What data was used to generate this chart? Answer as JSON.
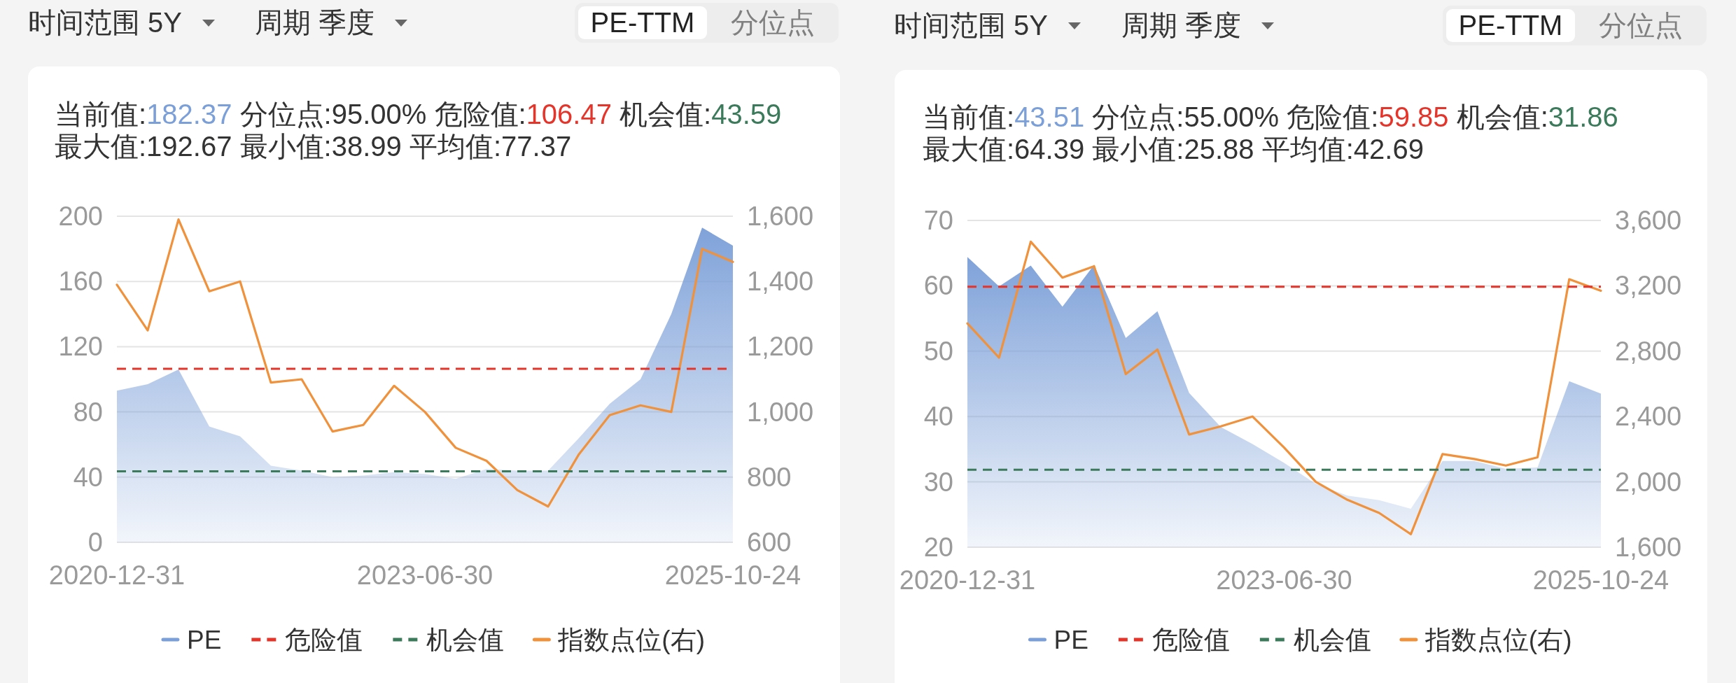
{
  "chart_data": [
    {
      "type": "area",
      "annotations": [
        "时间范围 5Y",
        "周期 季度",
        "PE-TTM",
        "分位点",
        "当前值:182.37",
        "分位点:95.00%",
        "危险值:106.47",
        "机会值:43.59",
        "最大值:192.67",
        "最小值:38.99",
        "平均值:77.37"
      ],
      "categories": [
        "2020-12-31",
        null,
        null,
        null,
        null,
        null,
        null,
        null,
        null,
        null,
        "2023-06-30",
        null,
        null,
        null,
        null,
        null,
        null,
        null,
        null,
        null,
        "2025-10-24"
      ],
      "series": [
        {
          "name": "PE",
          "color": "#7b9fd8",
          "values": [
            93,
            97,
            106,
            71,
            65,
            47,
            44,
            40,
            41,
            43,
            42,
            39,
            45,
            44,
            44,
            64,
            85,
            100,
            140,
            193,
            182
          ]
        },
        {
          "name": "指数点位(右)",
          "type": "line",
          "color": "#f0913b",
          "axis": "y2",
          "values": [
            1390,
            1250,
            1590,
            1370,
            1400,
            1090,
            1100,
            940,
            960,
            1080,
            1000,
            890,
            850,
            760,
            710,
            870,
            990,
            1020,
            1000,
            1500,
            1460
          ]
        }
      ],
      "ylim": [
        0,
        200
      ],
      "yticks": [
        0,
        40,
        80,
        120,
        160,
        200
      ],
      "y2lim": [
        600,
        1600
      ],
      "y2ticks": [
        600,
        800,
        {
          "value": 1000,
          "label": "1,000"
        },
        {
          "value": 1200,
          "label": "1,200"
        },
        {
          "value": 1400,
          "label": "1,400"
        },
        {
          "value": 1600,
          "label": "1,600"
        }
      ],
      "ref_lines": [
        {
          "axis": "y",
          "value": 106.47,
          "label": "危险值",
          "color": "#e5352b",
          "line_style": "dashed"
        },
        {
          "axis": "y",
          "value": 43.59,
          "label": "机会值",
          "color": "#3b7a5a",
          "line_style": "dashed"
        }
      ],
      "grid": "y",
      "legend": "bottom",
      "line_style": "solid"
    },
    {
      "type": "area",
      "annotations": [
        "时间范围 5Y",
        "周期 季度",
        "PE-TTM",
        "分位点",
        "当前值:43.51",
        "分位点:55.00%",
        "危险值:59.85",
        "机会值:31.86",
        "最大值:64.39",
        "最小值:25.88",
        "平均值:42.69"
      ],
      "categories": [
        "2020-12-31",
        null,
        null,
        null,
        null,
        null,
        null,
        null,
        null,
        null,
        "2023-06-30",
        null,
        null,
        null,
        null,
        null,
        null,
        null,
        null,
        null,
        "2025-10-24"
      ],
      "series": [
        {
          "name": "PE",
          "color": "#7b9fd8",
          "values": [
            64.4,
            59.9,
            63.1,
            56.8,
            63.2,
            52,
            56.1,
            43.6,
            38.4,
            35.8,
            32.9,
            29.7,
            27.9,
            27.2,
            25.9,
            33.2,
            33.2,
            32,
            32.2,
            45.4,
            43.5
          ]
        },
        {
          "name": "指数点位(右)",
          "type": "line",
          "color": "#f0913b",
          "axis": "y2",
          "values": [
            2970,
            2760,
            3470,
            3250,
            3320,
            2660,
            2810,
            2290,
            2340,
            2400,
            2210,
            2000,
            1890,
            1810,
            1680,
            2170,
            2140,
            2100,
            2150,
            3240,
            3170
          ]
        }
      ],
      "ylim": [
        20,
        70
      ],
      "yticks": [
        20,
        30,
        40,
        50,
        60,
        70
      ],
      "y2lim": [
        1600,
        3600
      ],
      "y2ticks": [
        {
          "value": 1600,
          "label": "1,600"
        },
        {
          "value": 2000,
          "label": "2,000"
        },
        {
          "value": 2400,
          "label": "2,400"
        },
        {
          "value": 2800,
          "label": "2,800"
        },
        {
          "value": 3200,
          "label": "3,200"
        },
        {
          "value": 3600,
          "label": "3,600"
        }
      ],
      "ref_lines": [
        {
          "axis": "y",
          "value": 59.85,
          "label": "危险值",
          "color": "#e5352b",
          "line_style": "dashed"
        },
        {
          "axis": "y",
          "value": 31.86,
          "label": "机会值",
          "color": "#3b7a5a",
          "line_style": "dashed"
        }
      ],
      "grid": "y",
      "legend": "bottom",
      "line_style": "solid"
    }
  ]
}
